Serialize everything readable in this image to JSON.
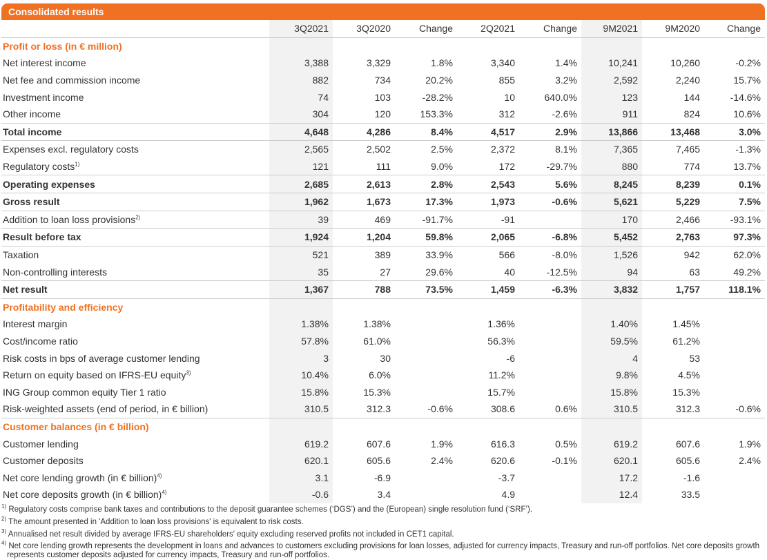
{
  "title": "Consolidated results",
  "columns": [
    "",
    "3Q2021",
    "3Q2020",
    "Change",
    "2Q2021",
    "Change",
    "9M2021",
    "9M2020",
    "Change"
  ],
  "rows": [
    {
      "type": "sec",
      "label": "Profit or loss (in € million)"
    },
    {
      "label": "Net interest income",
      "v": [
        "3,388",
        "3,329",
        "1.8%",
        "3,340",
        "1.4%",
        "10,241",
        "10,260",
        "-0.2%"
      ]
    },
    {
      "label": "Net fee and commission income",
      "v": [
        "882",
        "734",
        "20.2%",
        "855",
        "3.2%",
        "2,592",
        "2,240",
        "15.7%"
      ]
    },
    {
      "label": "Investment income",
      "v": [
        "74",
        "103",
        "-28.2%",
        "10",
        "640.0%",
        "123",
        "144",
        "-14.6%"
      ]
    },
    {
      "label": "Other income",
      "v": [
        "304",
        "120",
        "153.3%",
        "312",
        "-2.6%",
        "911",
        "824",
        "10.6%"
      ]
    },
    {
      "type": "bold",
      "label": "Total income",
      "v": [
        "4,648",
        "4,286",
        "8.4%",
        "4,517",
        "2.9%",
        "13,866",
        "13,468",
        "3.0%"
      ]
    },
    {
      "label": "Expenses excl. regulatory costs",
      "v": [
        "2,565",
        "2,502",
        "2.5%",
        "2,372",
        "8.1%",
        "7,365",
        "7,465",
        "-1.3%"
      ]
    },
    {
      "label": "Regulatory costs",
      "sup": "1)",
      "v": [
        "121",
        "111",
        "9.0%",
        "172",
        "-29.7%",
        "880",
        "774",
        "13.7%"
      ]
    },
    {
      "type": "bold",
      "label": "Operating expenses",
      "v": [
        "2,685",
        "2,613",
        "2.8%",
        "2,543",
        "5.6%",
        "8,245",
        "8,239",
        "0.1%"
      ]
    },
    {
      "type": "bold",
      "label": "Gross result",
      "v": [
        "1,962",
        "1,673",
        "17.3%",
        "1,973",
        "-0.6%",
        "5,621",
        "5,229",
        "7.5%"
      ]
    },
    {
      "label": "Addition to loan loss provisions",
      "sup": "2)",
      "v": [
        "39",
        "469",
        "-91.7%",
        "-91",
        "",
        "170",
        "2,466",
        "-93.1%"
      ]
    },
    {
      "type": "bold",
      "label": "Result before tax",
      "v": [
        "1,924",
        "1,204",
        "59.8%",
        "2,065",
        "-6.8%",
        "5,452",
        "2,763",
        "97.3%"
      ]
    },
    {
      "label": "Taxation",
      "v": [
        "521",
        "389",
        "33.9%",
        "566",
        "-8.0%",
        "1,526",
        "942",
        "62.0%"
      ]
    },
    {
      "label": "Non-controlling interests",
      "v": [
        "35",
        "27",
        "29.6%",
        "40",
        "-12.5%",
        "94",
        "63",
        "49.2%"
      ]
    },
    {
      "type": "bold",
      "label": "Net result",
      "v": [
        "1,367",
        "788",
        "73.5%",
        "1,459",
        "-6.3%",
        "3,832",
        "1,757",
        "118.1%"
      ]
    },
    {
      "type": "sec",
      "label": "Profitability and efficiency"
    },
    {
      "label": "Interest margin",
      "v": [
        "1.38%",
        "1.38%",
        "",
        "1.36%",
        "",
        "1.40%",
        "1.45%",
        ""
      ]
    },
    {
      "label": "Cost/income ratio",
      "v": [
        "57.8%",
        "61.0%",
        "",
        "56.3%",
        "",
        "59.5%",
        "61.2%",
        ""
      ]
    },
    {
      "label": "Risk costs in bps of average customer lending",
      "v": [
        "3",
        "30",
        "",
        "-6",
        "",
        "4",
        "53",
        ""
      ]
    },
    {
      "label": "Return on equity based on IFRS-EU equity",
      "sup": "3)",
      "v": [
        "10.4%",
        "6.0%",
        "",
        "11.2%",
        "",
        "9.8%",
        "4.5%",
        ""
      ]
    },
    {
      "label": "ING Group common equity Tier 1 ratio",
      "v": [
        "15.8%",
        "15.3%",
        "",
        "15.7%",
        "",
        "15.8%",
        "15.3%",
        ""
      ]
    },
    {
      "label": "Risk-weighted assets (end of period, in € billion)",
      "v": [
        "310.5",
        "312.3",
        "-0.6%",
        "308.6",
        "0.6%",
        "310.5",
        "312.3",
        "-0.6%"
      ]
    },
    {
      "type": "sec",
      "rule": true,
      "label": "Customer balances (in € billion)"
    },
    {
      "label": "Customer lending",
      "v": [
        "619.2",
        "607.6",
        "1.9%",
        "616.3",
        "0.5%",
        "619.2",
        "607.6",
        "1.9%"
      ]
    },
    {
      "label": "Customer deposits",
      "v": [
        "620.1",
        "605.6",
        "2.4%",
        "620.6",
        "-0.1%",
        "620.1",
        "605.6",
        "2.4%"
      ]
    },
    {
      "label": "Net core lending growth (in € billion)",
      "sup": "4)",
      "v": [
        "3.1",
        "-6.9",
        "",
        "-3.7",
        "",
        "17.2",
        "-1.6",
        ""
      ]
    },
    {
      "label": "Net core deposits growth (in € billion)",
      "sup": "4)",
      "v": [
        "-0.6",
        "3.4",
        "",
        "4.9",
        "",
        "12.4",
        "33.5",
        ""
      ]
    }
  ],
  "footnotes": [
    {
      "mark": "1)",
      "text": "Regulatory costs comprise bank taxes and contributions to the deposit guarantee schemes (‘DGS’) and the (European) single resolution fund (‘SRF’)."
    },
    {
      "mark": "2)",
      "text": "The amount presented in 'Addition to loan loss provisions' is equivalent to risk costs."
    },
    {
      "mark": "3)",
      "text": "Annualised net result divided by average IFRS-EU shareholders' equity excluding reserved profits not included in CET1 capital."
    },
    {
      "mark": "4)",
      "text": "Net core lending growth represents the development in loans and advances to customers excluding provisions for loan losses, adjusted for currency impacts, Treasury and run-off portfolios. Net core deposits growth represents customer deposits adjusted for currency impacts, Treasury and run-off portfolios."
    }
  ]
}
